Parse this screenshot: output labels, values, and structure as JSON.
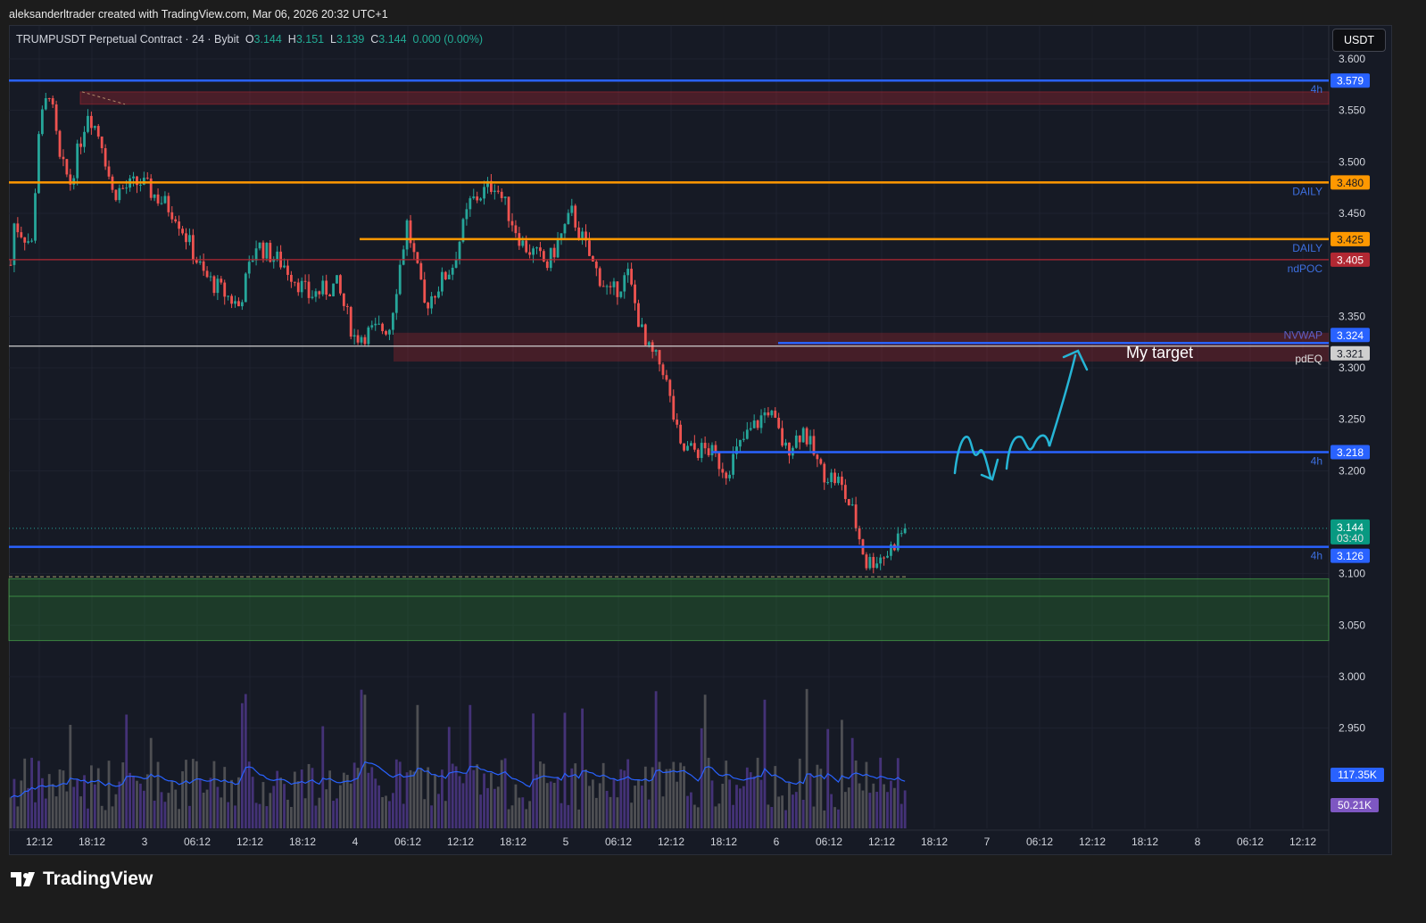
{
  "credit": "aleksanderltrader created with TradingView.com, Mar 06, 2026 20:32 UTC+1",
  "legend": {
    "symbol": "TRUMPUSDT Perpetual Contract · 24 · Bybit",
    "o_label": "O",
    "o": "3.144",
    "h_label": "H",
    "h": "3.151",
    "l_label": "L",
    "l": "3.139",
    "c_label": "C",
    "c": "3.144",
    "change": "0.000 (0.00%)"
  },
  "currency": "USDT",
  "brand": "TradingView",
  "colors": {
    "up": "#26a69a",
    "down": "#ef5350",
    "blue": "#2962ff",
    "orange": "#ff9800",
    "red": "#b22833",
    "cyan": "#26b5d6"
  },
  "chart_data": {
    "type": "candlestick",
    "title": "TRUMPUSDT Perpetual Contract · 24 · Bybit",
    "ylim": [
      2.88,
      3.625
    ],
    "y_ticks": [
      "3.600",
      "3.550",
      "3.500",
      "3.450",
      "3.350",
      "3.300",
      "3.250",
      "3.200",
      "3.100",
      "3.050",
      "3.000",
      "2.950"
    ],
    "x_ticks": [
      "12:12",
      "18:12",
      "3",
      "06:12",
      "12:12",
      "18:12",
      "4",
      "06:12",
      "12:12",
      "18:12",
      "5",
      "06:12",
      "12:12",
      "18:12",
      "6",
      "06:12",
      "12:12",
      "18:12",
      "7",
      "06:12",
      "12:12",
      "18:12",
      "8",
      "06:12",
      "12:12"
    ],
    "price_path": [
      [
        0,
        3.4
      ],
      [
        1,
        3.44
      ],
      [
        6,
        3.42
      ],
      [
        8,
        3.53
      ],
      [
        11,
        3.57
      ],
      [
        14,
        3.5
      ],
      [
        17,
        3.48
      ],
      [
        22,
        3.55
      ],
      [
        26,
        3.52
      ],
      [
        29,
        3.47
      ],
      [
        37,
        3.48
      ],
      [
        47,
        3.45
      ],
      [
        55,
        3.39
      ],
      [
        65,
        3.36
      ],
      [
        70,
        3.42
      ],
      [
        78,
        3.4
      ],
      [
        85,
        3.37
      ],
      [
        93,
        3.38
      ],
      [
        98,
        3.33
      ],
      [
        108,
        3.34
      ],
      [
        113,
        3.44
      ],
      [
        118,
        3.36
      ],
      [
        126,
        3.4
      ],
      [
        131,
        3.46
      ],
      [
        138,
        3.48
      ],
      [
        146,
        3.42
      ],
      [
        153,
        3.4
      ],
      [
        160,
        3.45
      ],
      [
        166,
        3.4
      ],
      [
        171,
        3.37
      ],
      [
        176,
        3.39
      ],
      [
        181,
        3.32
      ],
      [
        186,
        3.3
      ],
      [
        191,
        3.22
      ],
      [
        199,
        3.22
      ],
      [
        204,
        3.2
      ],
      [
        209,
        3.23
      ],
      [
        216,
        3.26
      ],
      [
        221,
        3.22
      ],
      [
        226,
        3.24
      ],
      [
        231,
        3.2
      ],
      [
        236,
        3.19
      ],
      [
        240,
        3.16
      ],
      [
        244,
        3.11
      ],
      [
        250,
        3.12
      ],
      [
        255,
        3.145
      ]
    ],
    "levels": [
      {
        "price": 3.579,
        "label": "3.579",
        "tag": "4h",
        "color": "#2962ff"
      },
      {
        "price": 3.48,
        "label": "3.480",
        "tag": "DAILY",
        "color": "#ff9800"
      },
      {
        "price": 3.425,
        "label": "3.425",
        "tag": "DAILY",
        "color": "#ff9800"
      },
      {
        "price": 3.405,
        "label": "3.405",
        "tag": "ndPOC",
        "color": "#b22833"
      },
      {
        "price": 3.324,
        "label": "3.324",
        "tag": "NVWAP",
        "color": "#2962ff"
      },
      {
        "price": 3.321,
        "label": "3.321",
        "tag": "pdEQ",
        "color": "#cfcfcf"
      },
      {
        "price": 3.218,
        "label": "3.218",
        "tag": "4h",
        "color": "#2962ff"
      },
      {
        "price": 3.126,
        "label": "3.126",
        "tag": "4h",
        "color": "#2962ff"
      }
    ],
    "last_price": "3.144",
    "countdown": "03:40",
    "annotation": "My target",
    "volume": {
      "ma_label": "117.35K",
      "last_label": "50.21K"
    }
  }
}
